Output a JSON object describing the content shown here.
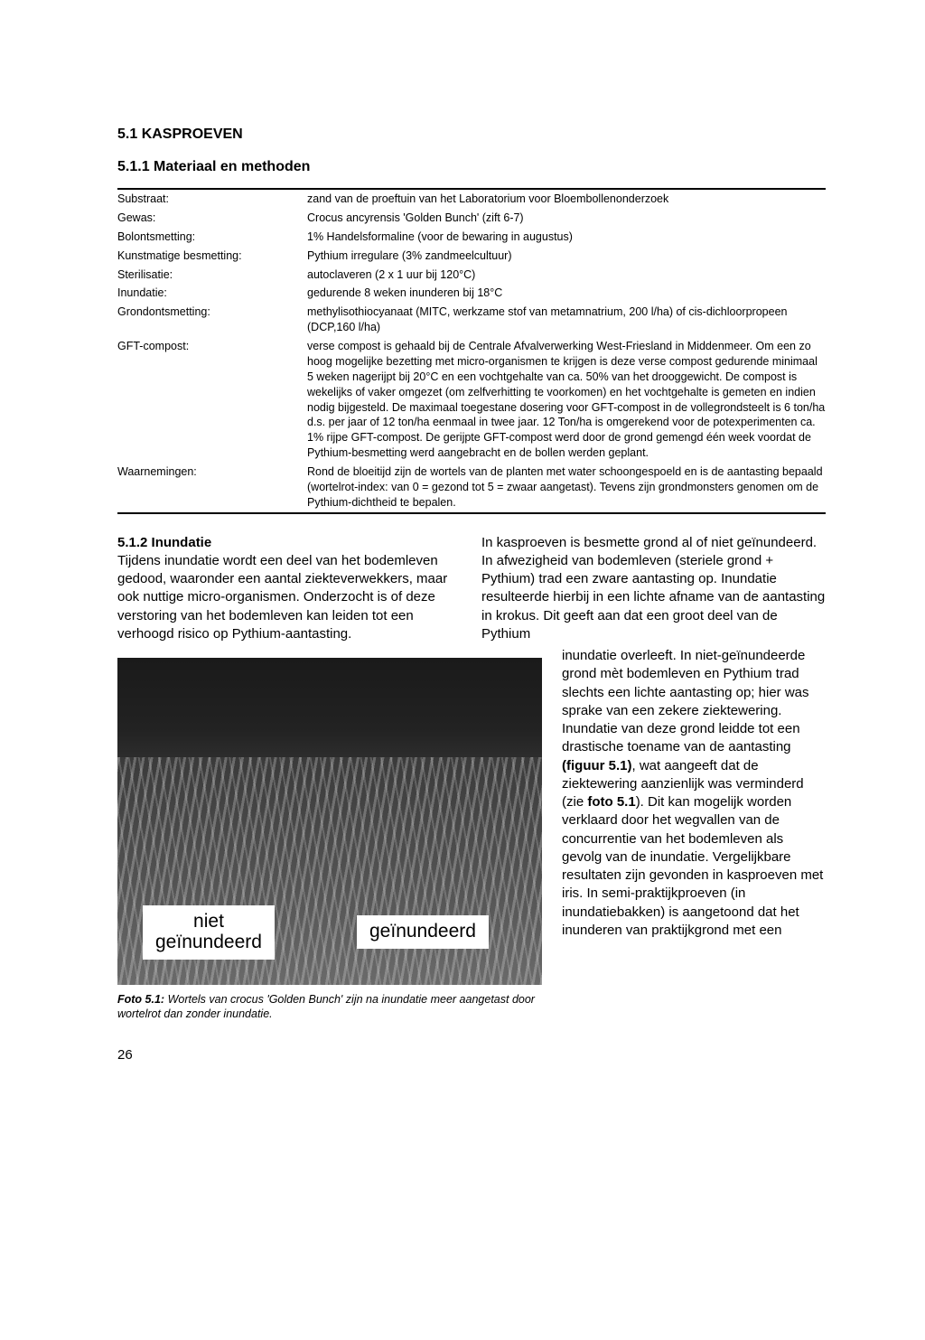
{
  "headings": {
    "h1": "5.1  KASPROEVEN",
    "h2": "5.1.1   Materiaal en methoden",
    "h3": "5.1.2   Inundatie"
  },
  "table": {
    "rows": [
      {
        "label": "Substraat:",
        "value": "zand van de proeftuin van het Laboratorium voor Bloembollenonderzoek"
      },
      {
        "label": "Gewas:",
        "value": "Crocus ancyrensis 'Golden Bunch' (zift 6-7)"
      },
      {
        "label": "Bolontsmetting:",
        "value": "1% Handelsformaline (voor de bewaring in augustus)"
      },
      {
        "label": "Kunstmatige besmetting:",
        "value": "Pythium irregulare (3% zandmeelcultuur)"
      },
      {
        "label": "Sterilisatie:",
        "value": "autoclaveren (2 x 1 uur bij 120°C)"
      },
      {
        "label": "Inundatie:",
        "value": "gedurende 8 weken inunderen bij 18°C"
      },
      {
        "label": "Grondontsmetting:",
        "value": "methylisothiocyanaat (MITC, werkzame stof van metamnatrium, 200 l/ha) of cis-dichloorpropeen (DCP,160 l/ha)"
      },
      {
        "label": "GFT-compost:",
        "value": "verse compost is gehaald bij de Centrale Afvalverwerking West-Friesland in Middenmeer. Om een zo hoog mogelijke bezetting met micro-organismen te krijgen is deze verse compost gedurende minimaal 5 weken nagerijpt bij 20°C en een vochtgehalte van ca. 50% van het drooggewicht. De compost is wekelijks of vaker omgezet (om zelfverhitting te voorkomen) en het vochtgehalte is gemeten en indien nodig bijgesteld. De maximaal toegestane dosering voor GFT-compost in de vollegrondsteelt is 6 ton/ha d.s. per jaar of 12 ton/ha eenmaal in twee jaar. 12 Ton/ha is omgerekend voor de potexperimenten ca. 1% rijpe GFT-compost. De gerijpte GFT-compost werd door de grond gemengd één week voordat de Pythium-besmetting werd aangebracht en de bollen werden geplant."
      },
      {
        "label": "Waarnemingen:",
        "value": "Rond de bloeitijd zijn de wortels van de planten met water schoongespoeld en is de aantasting bepaald (wortelrot-index: van 0 = gezond tot 5 = zwaar aangetast). Tevens zijn grondmonsters genomen om de Pythium-dichtheid te bepalen."
      }
    ]
  },
  "body": {
    "left_intro": "Tijdens inundatie wordt een deel van het bodemleven gedood, waaronder een aantal ziekteverwekkers, maar ook nuttige micro-organismen. Onderzocht is of deze verstoring van het bodemleven kan leiden tot een verhoogd risico op Pythium-aantasting.",
    "right_intro": "In kasproeven is besmette grond al of niet geïnundeerd.\nIn afwezigheid van bodemleven (steriele grond + Pythium) trad een zware aantasting op. Inundatie resulteerde hierbij in een lichte afname van de aantasting in krokus. Dit geeft aan dat een groot deel van de Pythium",
    "right_continue_1": "inundatie overleeft. In niet-geïnundeerde grond mèt bodemleven en Pythium trad slechts een lichte aantasting op; hier was sprake van een zekere ziektewering. Inundatie van deze grond leidde tot een drastische toename van de aantasting ",
    "fig_ref": "(figuur 5.1)",
    "right_continue_2": ", wat aangeeft dat de ziektewering aanzienlijk was verminderd (zie ",
    "foto_ref": "foto 5.1",
    "right_continue_3": "). Dit kan mogelijk worden verklaard door het wegvallen van de concurrentie van het bodemleven als gevolg van de inundatie. Vergelijkbare resultaten zijn gevonden in kasproeven met iris. In semi-praktijkproeven (in inundatiebakken) is aangetoond dat het inunderen van praktijkgrond met een"
  },
  "figure": {
    "tag_left": "niet\ngeïnundeerd",
    "tag_right": "geïnundeerd",
    "caption_bold": "Foto 5.1:",
    "caption_rest": " Wortels van crocus 'Golden Bunch' zijn na inundatie meer aangetast door wortelrot dan zonder inundatie."
  },
  "page_number": "26"
}
